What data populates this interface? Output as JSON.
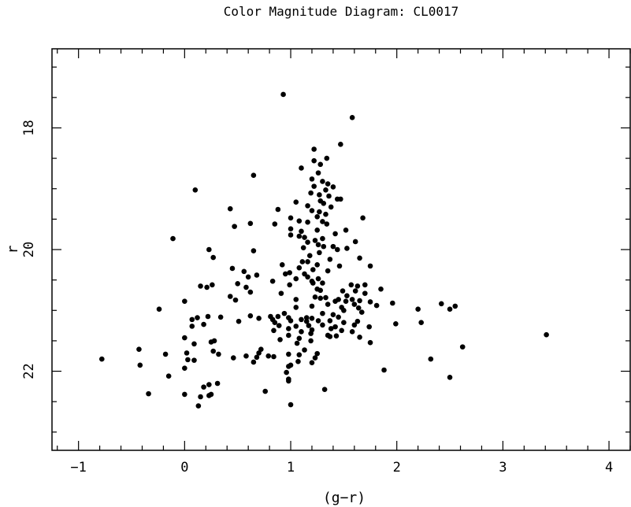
{
  "chart_data": {
    "type": "scatter",
    "title": "Color Magnitude Diagram: CL0017",
    "xlabel": "(g−r)",
    "ylabel": "r",
    "xlim": [
      -1.25,
      4.2
    ],
    "ylim": [
      23.3,
      16.7
    ],
    "x_ticks": [
      -1,
      0,
      1,
      2,
      3,
      4
    ],
    "x_tick_labels": [
      "−1",
      "0",
      "1",
      "2",
      "3",
      "4"
    ],
    "y_ticks": [
      18,
      20,
      22
    ],
    "y_tick_labels": [
      "18",
      "20",
      "22"
    ],
    "y_inverted": true,
    "grid": false,
    "legend": "none",
    "marker_color": "#000000",
    "series": [
      {
        "points": [
          [
            0.93,
            17.45
          ],
          [
            1.58,
            17.83
          ],
          [
            1.47,
            18.27
          ],
          [
            1.22,
            18.35
          ],
          [
            1.34,
            18.5
          ],
          [
            1.22,
            18.54
          ],
          [
            1.28,
            18.6
          ],
          [
            1.1,
            18.66
          ],
          [
            1.26,
            18.74
          ],
          [
            0.65,
            18.78
          ],
          [
            1.2,
            18.84
          ],
          [
            1.3,
            18.88
          ],
          [
            1.35,
            18.92
          ],
          [
            1.22,
            18.96
          ],
          [
            1.4,
            18.97
          ],
          [
            1.33,
            19.02
          ],
          [
            0.1,
            19.02
          ],
          [
            1.19,
            19.07
          ],
          [
            1.27,
            19.1
          ],
          [
            1.36,
            19.12
          ],
          [
            1.44,
            19.17
          ],
          [
            1.47,
            19.17
          ],
          [
            1.28,
            19.2
          ],
          [
            1.05,
            19.22
          ],
          [
            1.31,
            19.24
          ],
          [
            1.16,
            19.28
          ],
          [
            1.38,
            19.3
          ],
          [
            0.43,
            19.33
          ],
          [
            0.88,
            19.34
          ],
          [
            1.2,
            19.36
          ],
          [
            1.27,
            19.38
          ],
          [
            1.33,
            19.42
          ],
          [
            1.0,
            19.48
          ],
          [
            1.25,
            19.46
          ],
          [
            1.68,
            19.48
          ],
          [
            1.08,
            19.53
          ],
          [
            1.16,
            19.55
          ],
          [
            1.3,
            19.54
          ],
          [
            0.62,
            19.57
          ],
          [
            0.85,
            19.58
          ],
          [
            1.34,
            19.58
          ],
          [
            0.47,
            19.62
          ],
          [
            1.0,
            19.66
          ],
          [
            1.25,
            19.68
          ],
          [
            1.1,
            19.7
          ],
          [
            1.52,
            19.68
          ],
          [
            1.42,
            19.74
          ],
          [
            1.0,
            19.76
          ],
          [
            1.08,
            19.78
          ],
          [
            1.13,
            19.8
          ],
          [
            -0.11,
            19.82
          ],
          [
            1.3,
            19.82
          ],
          [
            1.23,
            19.85
          ],
          [
            1.16,
            19.88
          ],
          [
            1.61,
            19.87
          ],
          [
            1.26,
            19.92
          ],
          [
            1.31,
            19.95
          ],
          [
            1.4,
            19.95
          ],
          [
            1.12,
            19.97
          ],
          [
            1.53,
            19.98
          ],
          [
            1.44,
            20.0
          ],
          [
            0.23,
            20.0
          ],
          [
            0.65,
            20.02
          ],
          [
            1.27,
            20.05
          ],
          [
            1.18,
            20.1
          ],
          [
            0.27,
            20.13
          ],
          [
            1.65,
            20.14
          ],
          [
            1.37,
            20.16
          ],
          [
            1.11,
            20.2
          ],
          [
            1.16,
            20.2
          ],
          [
            0.92,
            20.25
          ],
          [
            1.25,
            20.25
          ],
          [
            1.46,
            20.27
          ],
          [
            1.75,
            20.27
          ],
          [
            1.08,
            20.3
          ],
          [
            0.45,
            20.31
          ],
          [
            1.21,
            20.33
          ],
          [
            1.35,
            20.35
          ],
          [
            0.56,
            20.36
          ],
          [
            0.99,
            20.38
          ],
          [
            0.95,
            20.4
          ],
          [
            1.13,
            20.4
          ],
          [
            0.68,
            20.42
          ],
          [
            0.6,
            20.45
          ],
          [
            1.16,
            20.45
          ],
          [
            1.05,
            20.48
          ],
          [
            1.26,
            20.48
          ],
          [
            0.83,
            20.52
          ],
          [
            1.2,
            20.52
          ],
          [
            1.21,
            20.55
          ],
          [
            0.5,
            20.56
          ],
          [
            1.3,
            20.55
          ],
          [
            0.99,
            20.58
          ],
          [
            1.57,
            20.58
          ],
          [
            1.7,
            20.58
          ],
          [
            0.26,
            20.58
          ],
          [
            0.15,
            20.6
          ],
          [
            0.21,
            20.62
          ],
          [
            0.58,
            20.62
          ],
          [
            1.63,
            20.6
          ],
          [
            1.25,
            20.65
          ],
          [
            1.85,
            20.65
          ],
          [
            1.28,
            20.67
          ],
          [
            1.49,
            20.68
          ],
          [
            1.61,
            20.68
          ],
          [
            0.62,
            20.7
          ],
          [
            0.91,
            20.72
          ],
          [
            1.7,
            20.72
          ],
          [
            1.53,
            20.76
          ],
          [
            0.43,
            20.77
          ],
          [
            1.23,
            20.78
          ],
          [
            1.33,
            20.79
          ],
          [
            1.28,
            20.8
          ],
          [
            1.05,
            20.82
          ],
          [
            0.48,
            20.83
          ],
          [
            1.45,
            20.82
          ],
          [
            1.58,
            20.82
          ],
          [
            1.65,
            20.84
          ],
          [
            0.0,
            20.85
          ],
          [
            1.42,
            20.85
          ],
          [
            1.52,
            20.85
          ],
          [
            1.75,
            20.86
          ],
          [
            1.96,
            20.88
          ],
          [
            2.42,
            20.89
          ],
          [
            1.35,
            20.9
          ],
          [
            1.6,
            20.9
          ],
          [
            1.81,
            20.92
          ],
          [
            2.55,
            20.93
          ],
          [
            1.2,
            20.93
          ],
          [
            1.05,
            20.95
          ],
          [
            1.48,
            20.95
          ],
          [
            1.64,
            20.96
          ],
          [
            -0.24,
            20.98
          ],
          [
            2.2,
            20.98
          ],
          [
            2.5,
            20.98
          ],
          [
            1.5,
            21.0
          ],
          [
            1.67,
            21.03
          ],
          [
            0.94,
            21.05
          ],
          [
            1.3,
            21.05
          ],
          [
            1.4,
            21.07
          ],
          [
            0.62,
            21.09
          ],
          [
            0.81,
            21.1
          ],
          [
            0.88,
            21.1
          ],
          [
            0.22,
            21.1
          ],
          [
            0.34,
            21.11
          ],
          [
            1.45,
            21.11
          ],
          [
            1.15,
            21.12
          ],
          [
            0.12,
            21.12
          ],
          [
            0.98,
            21.12
          ],
          [
            0.7,
            21.13
          ],
          [
            1.2,
            21.13
          ],
          [
            0.07,
            21.15
          ],
          [
            0.83,
            21.15
          ],
          [
            1.1,
            21.15
          ],
          [
            1.0,
            21.17
          ],
          [
            1.26,
            21.17
          ],
          [
            1.37,
            21.17
          ],
          [
            0.51,
            21.18
          ],
          [
            1.15,
            21.18
          ],
          [
            1.63,
            21.18
          ],
          [
            1.5,
            21.2
          ],
          [
            0.85,
            21.2
          ],
          [
            2.23,
            21.2
          ],
          [
            1.99,
            21.22
          ],
          [
            0.18,
            21.23
          ],
          [
            1.6,
            21.24
          ],
          [
            1.3,
            21.24
          ],
          [
            1.17,
            21.25
          ],
          [
            0.89,
            21.25
          ],
          [
            0.07,
            21.26
          ],
          [
            1.05,
            21.26
          ],
          [
            1.42,
            21.27
          ],
          [
            1.74,
            21.27
          ],
          [
            0.98,
            21.3
          ],
          [
            1.38,
            21.3
          ],
          [
            1.2,
            21.32
          ],
          [
            0.84,
            21.33
          ],
          [
            1.48,
            21.33
          ],
          [
            1.1,
            21.35
          ],
          [
            1.58,
            21.35
          ],
          [
            1.19,
            21.38
          ],
          [
            3.41,
            21.4
          ],
          [
            1.35,
            21.41
          ],
          [
            0.98,
            21.41
          ],
          [
            1.43,
            21.42
          ],
          [
            1.37,
            21.43
          ],
          [
            1.65,
            21.44
          ],
          [
            0.0,
            21.45
          ],
          [
            1.08,
            21.46
          ],
          [
            0.9,
            21.48
          ],
          [
            0.28,
            21.5
          ],
          [
            1.19,
            21.5
          ],
          [
            0.25,
            21.52
          ],
          [
            1.75,
            21.53
          ],
          [
            1.06,
            21.54
          ],
          [
            0.09,
            21.55
          ],
          [
            2.62,
            21.6
          ],
          [
            -0.43,
            21.64
          ],
          [
            0.72,
            21.64
          ],
          [
            1.13,
            21.65
          ],
          [
            0.27,
            21.67
          ],
          [
            0.02,
            21.7
          ],
          [
            0.7,
            21.7
          ],
          [
            1.25,
            21.71
          ],
          [
            -0.18,
            21.72
          ],
          [
            0.32,
            21.72
          ],
          [
            0.98,
            21.72
          ],
          [
            1.08,
            21.73
          ],
          [
            0.58,
            21.75
          ],
          [
            0.79,
            21.75
          ],
          [
            0.84,
            21.76
          ],
          [
            0.68,
            21.77
          ],
          [
            0.46,
            21.78
          ],
          [
            1.23,
            21.78
          ],
          [
            -0.78,
            21.8
          ],
          [
            0.03,
            21.81
          ],
          [
            2.32,
            21.8
          ],
          [
            0.09,
            21.82
          ],
          [
            1.07,
            21.84
          ],
          [
            0.65,
            21.85
          ],
          [
            1.2,
            21.86
          ],
          [
            -0.42,
            21.9
          ],
          [
            1.0,
            21.9
          ],
          [
            0.98,
            21.92
          ],
          [
            0.0,
            21.95
          ],
          [
            1.88,
            21.98
          ],
          [
            0.96,
            22.02
          ],
          [
            -0.15,
            22.08
          ],
          [
            2.5,
            22.1
          ],
          [
            0.98,
            22.13
          ],
          [
            0.98,
            22.16
          ],
          [
            0.31,
            22.2
          ],
          [
            0.23,
            22.22
          ],
          [
            0.18,
            22.26
          ],
          [
            1.32,
            22.3
          ],
          [
            0.76,
            22.33
          ],
          [
            -0.34,
            22.37
          ],
          [
            0.0,
            22.38
          ],
          [
            0.25,
            22.38
          ],
          [
            0.23,
            22.4
          ],
          [
            0.15,
            22.42
          ],
          [
            1.0,
            22.55
          ],
          [
            0.13,
            22.57
          ]
        ]
      }
    ]
  }
}
